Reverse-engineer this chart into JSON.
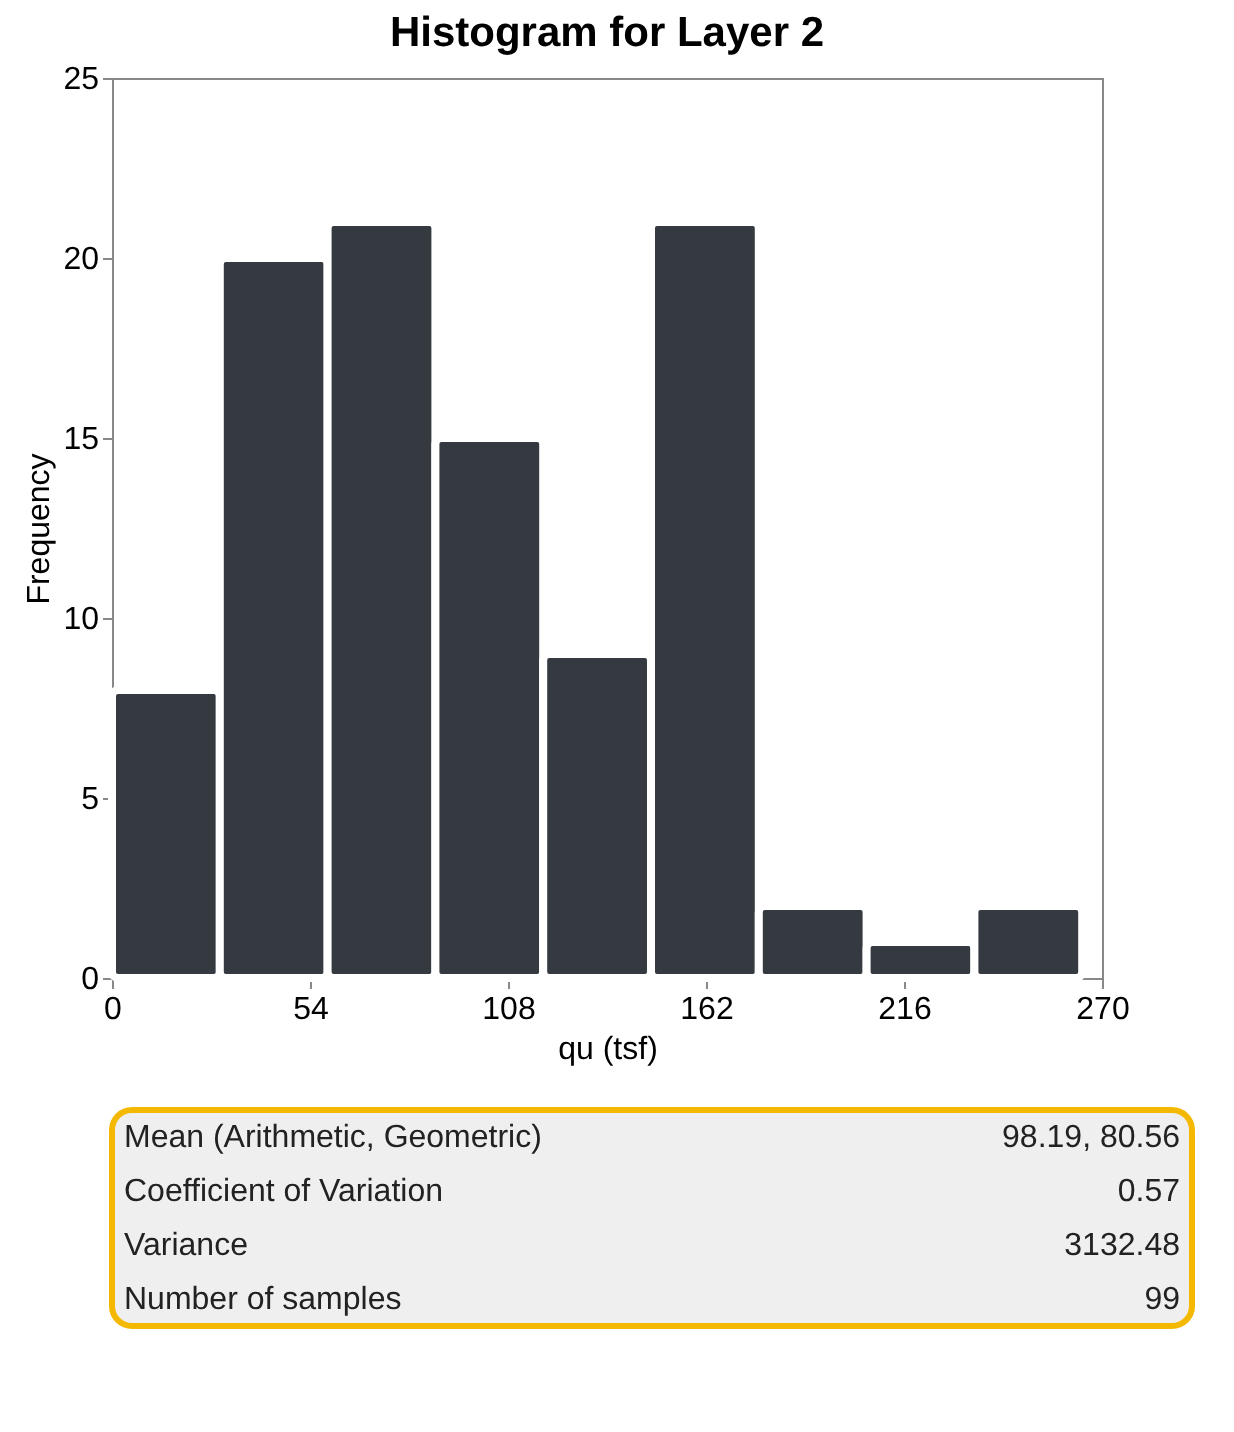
{
  "chart_data": {
    "type": "histogram",
    "title": "Histogram for Layer 2",
    "xlabel": "qu (tsf)",
    "ylabel": "Frequency",
    "bins": [
      0,
      29.4,
      58.8,
      88.2,
      117.6,
      147,
      176.4,
      205.8,
      235.2,
      264.6
    ],
    "values": [
      8,
      20,
      21,
      15,
      9,
      21,
      2,
      1,
      2
    ],
    "color": "#343a40",
    "xlim": [
      0,
      270
    ],
    "xticks": [
      0,
      54,
      108,
      162,
      216,
      270
    ],
    "ylim": [
      0,
      25
    ],
    "yticks": [
      0,
      5,
      10,
      15,
      20,
      25
    ],
    "grid": false,
    "annotations": [
      "Mean (Arithmetic, Geometric)",
      "98.19, 80.56",
      "Coefficient of Variation",
      "0.57",
      "Variance",
      "3132.48",
      "Number of samples",
      "99"
    ]
  }
}
